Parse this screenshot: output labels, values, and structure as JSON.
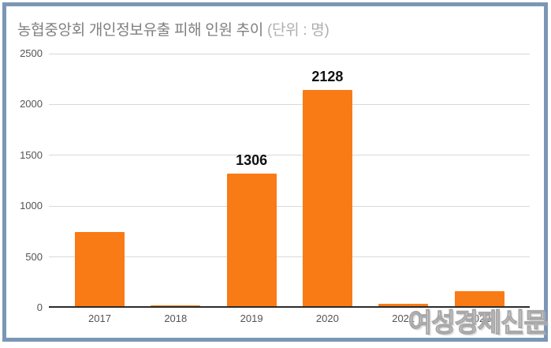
{
  "page": {
    "title_main": "농협중앙회 개인정보유출 피해 인원 추이",
    "title_unit": "(단위 : 명)",
    "watermark": "여성경제신문"
  },
  "colors": {
    "bar": "#F97B15",
    "frame_border": "#7B96B6",
    "gridline": "#D9D9D9",
    "axis_line": "#2B2B2B",
    "title_main": "#7F7F7F",
    "title_unit": "#AFAFAF",
    "tick_label": "#545454",
    "data_label": "#111111"
  },
  "chart_data": {
    "type": "bar",
    "title": "농협중앙회 개인정보유출 피해 인원 추이",
    "unit_label": "(단위 : 명)",
    "categories": [
      "2017",
      "2018",
      "2019",
      "2020",
      "2021",
      "2022"
    ],
    "values": [
      730,
      5,
      1306,
      2128,
      25,
      150
    ],
    "data_labels": [
      null,
      null,
      "1306",
      "2128",
      null,
      null
    ],
    "xlabel": "",
    "ylabel": "",
    "ylim": [
      0,
      2500
    ],
    "yticks": [
      0,
      500,
      1000,
      1500,
      2000,
      2500
    ],
    "grid": true,
    "legend": "none",
    "bar_color": "#F97B15"
  }
}
